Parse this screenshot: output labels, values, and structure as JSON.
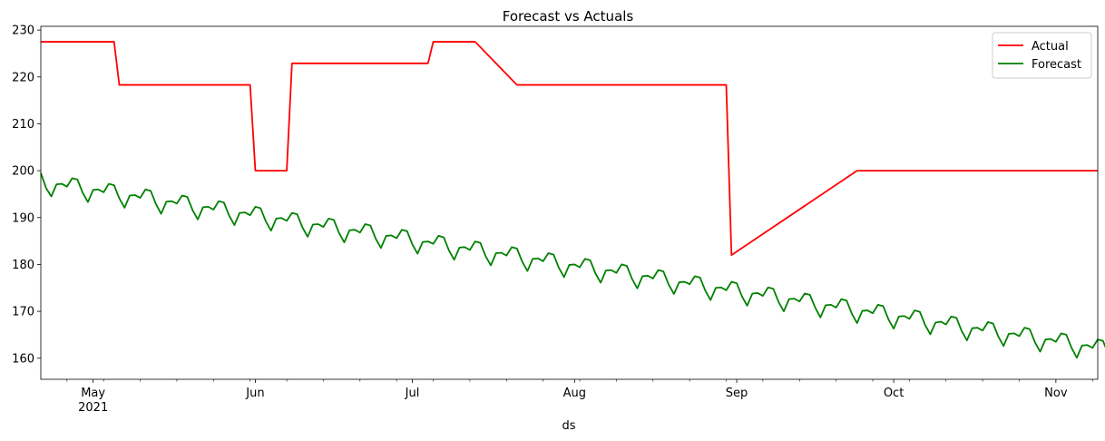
{
  "chart_data": {
    "type": "line",
    "title": "Forecast vs Actuals",
    "xlabel": "ds",
    "ylabel": "",
    "xlim": [
      "2021-04-21",
      "2021-11-09"
    ],
    "ylim": [
      155.5,
      230.8
    ],
    "y_ticks": [
      160,
      170,
      180,
      190,
      200,
      210,
      220,
      230
    ],
    "x_major_ticks": [
      {
        "date": "2021-05-01",
        "label": "May",
        "sublabel": "2021"
      },
      {
        "date": "2021-06-01",
        "label": "Jun",
        "sublabel": ""
      },
      {
        "date": "2021-07-01",
        "label": "Jul",
        "sublabel": ""
      },
      {
        "date": "2021-08-01",
        "label": "Aug",
        "sublabel": ""
      },
      {
        "date": "2021-09-01",
        "label": "Sep",
        "sublabel": ""
      },
      {
        "date": "2021-10-01",
        "label": "Oct",
        "sublabel": ""
      },
      {
        "date": "2021-11-01",
        "label": "Nov",
        "sublabel": ""
      }
    ],
    "x_minor_ticks": [
      "2021-04-26",
      "2021-05-03",
      "2021-05-10",
      "2021-05-17",
      "2021-05-24",
      "2021-05-31",
      "2021-06-07",
      "2021-06-14",
      "2021-06-21",
      "2021-06-28",
      "2021-07-05",
      "2021-07-12",
      "2021-07-19",
      "2021-07-26",
      "2021-08-02",
      "2021-08-09",
      "2021-08-16",
      "2021-08-23",
      "2021-08-30",
      "2021-09-06",
      "2021-09-13",
      "2021-09-20",
      "2021-09-27",
      "2021-10-04",
      "2021-10-11",
      "2021-10-18",
      "2021-10-25",
      "2021-11-08"
    ],
    "grid": false,
    "legend_position": "top-right",
    "series": [
      {
        "name": "Actual",
        "color": "#ff0000",
        "points": [
          [
            "2021-04-21",
            227.5
          ],
          [
            "2021-05-05",
            227.5
          ],
          [
            "2021-05-06",
            218.3
          ],
          [
            "2021-05-31",
            218.3
          ],
          [
            "2021-06-01",
            200.0
          ],
          [
            "2021-06-07",
            200.0
          ],
          [
            "2021-06-08",
            222.9
          ],
          [
            "2021-07-04",
            222.9
          ],
          [
            "2021-07-05",
            227.5
          ],
          [
            "2021-07-13",
            227.5
          ],
          [
            "2021-07-21",
            218.3
          ],
          [
            "2021-08-30",
            218.3
          ],
          [
            "2021-08-31",
            182.0
          ],
          [
            "2021-09-24",
            200.0
          ],
          [
            "2021-11-09",
            200.0
          ]
        ]
      },
      {
        "name": "Forecast",
        "color": "#008000",
        "start_date": "2021-04-21",
        "values": [
          199.5,
          196.3,
          194.5,
          197.1,
          197.2,
          196.6,
          198.4,
          198.1,
          195.3,
          193.3,
          195.9,
          196.0,
          195.4,
          197.2,
          196.9,
          194.1,
          192.1,
          194.7,
          194.8,
          194.2,
          196.0,
          195.7,
          192.9,
          190.8,
          193.4,
          193.5,
          193.0,
          194.7,
          194.4,
          191.6,
          189.6,
          192.2,
          192.3,
          191.7,
          193.5,
          193.2,
          190.4,
          188.4,
          191.0,
          191.1,
          190.5,
          192.3,
          192.0,
          189.2,
          187.2,
          189.8,
          189.9,
          189.3,
          191.0,
          190.7,
          187.9,
          185.9,
          188.5,
          188.6,
          188.0,
          189.8,
          189.5,
          186.7,
          184.7,
          187.3,
          187.4,
          186.8,
          188.6,
          188.3,
          185.5,
          183.5,
          186.1,
          186.2,
          185.6,
          187.4,
          187.1,
          184.3,
          182.3,
          184.8,
          184.9,
          184.4,
          186.1,
          185.8,
          183.0,
          181.0,
          183.6,
          183.7,
          183.1,
          184.9,
          184.6,
          181.8,
          179.8,
          182.4,
          182.5,
          181.9,
          183.7,
          183.4,
          180.6,
          178.6,
          181.2,
          181.3,
          180.7,
          182.4,
          182.1,
          179.3,
          177.3,
          179.9,
          180.0,
          179.4,
          181.2,
          180.9,
          178.1,
          176.1,
          178.7,
          178.8,
          178.2,
          180.0,
          179.7,
          176.9,
          174.9,
          177.5,
          177.6,
          177.0,
          178.8,
          178.5,
          175.7,
          173.7,
          176.2,
          176.3,
          175.8,
          177.5,
          177.2,
          174.4,
          172.4,
          175.0,
          175.1,
          174.5,
          176.3,
          176.0,
          173.2,
          171.2,
          173.8,
          173.9,
          173.3,
          175.1,
          174.8,
          172.0,
          170.0,
          172.6,
          172.7,
          172.1,
          173.8,
          173.5,
          170.8,
          168.7,
          171.3,
          171.4,
          170.8,
          172.6,
          172.3,
          169.5,
          167.5,
          170.1,
          170.2,
          169.6,
          171.4,
          171.1,
          168.3,
          166.3,
          168.9,
          169.0,
          168.4,
          170.2,
          169.9,
          167.1,
          165.1,
          167.6,
          167.8,
          167.2,
          168.9,
          168.6,
          165.8,
          163.8,
          166.4,
          166.5,
          165.9,
          167.7,
          167.4,
          164.6,
          162.6,
          165.2,
          165.3,
          164.7,
          166.5,
          166.2,
          163.4,
          161.4,
          164.0,
          164.1,
          163.5,
          165.3,
          165.0,
          162.2,
          160.1,
          162.7,
          162.8,
          162.2,
          164.0,
          163.7,
          160.9,
          158.9,
          161.5,
          161.6,
          161.0,
          162.8
        ]
      }
    ]
  }
}
